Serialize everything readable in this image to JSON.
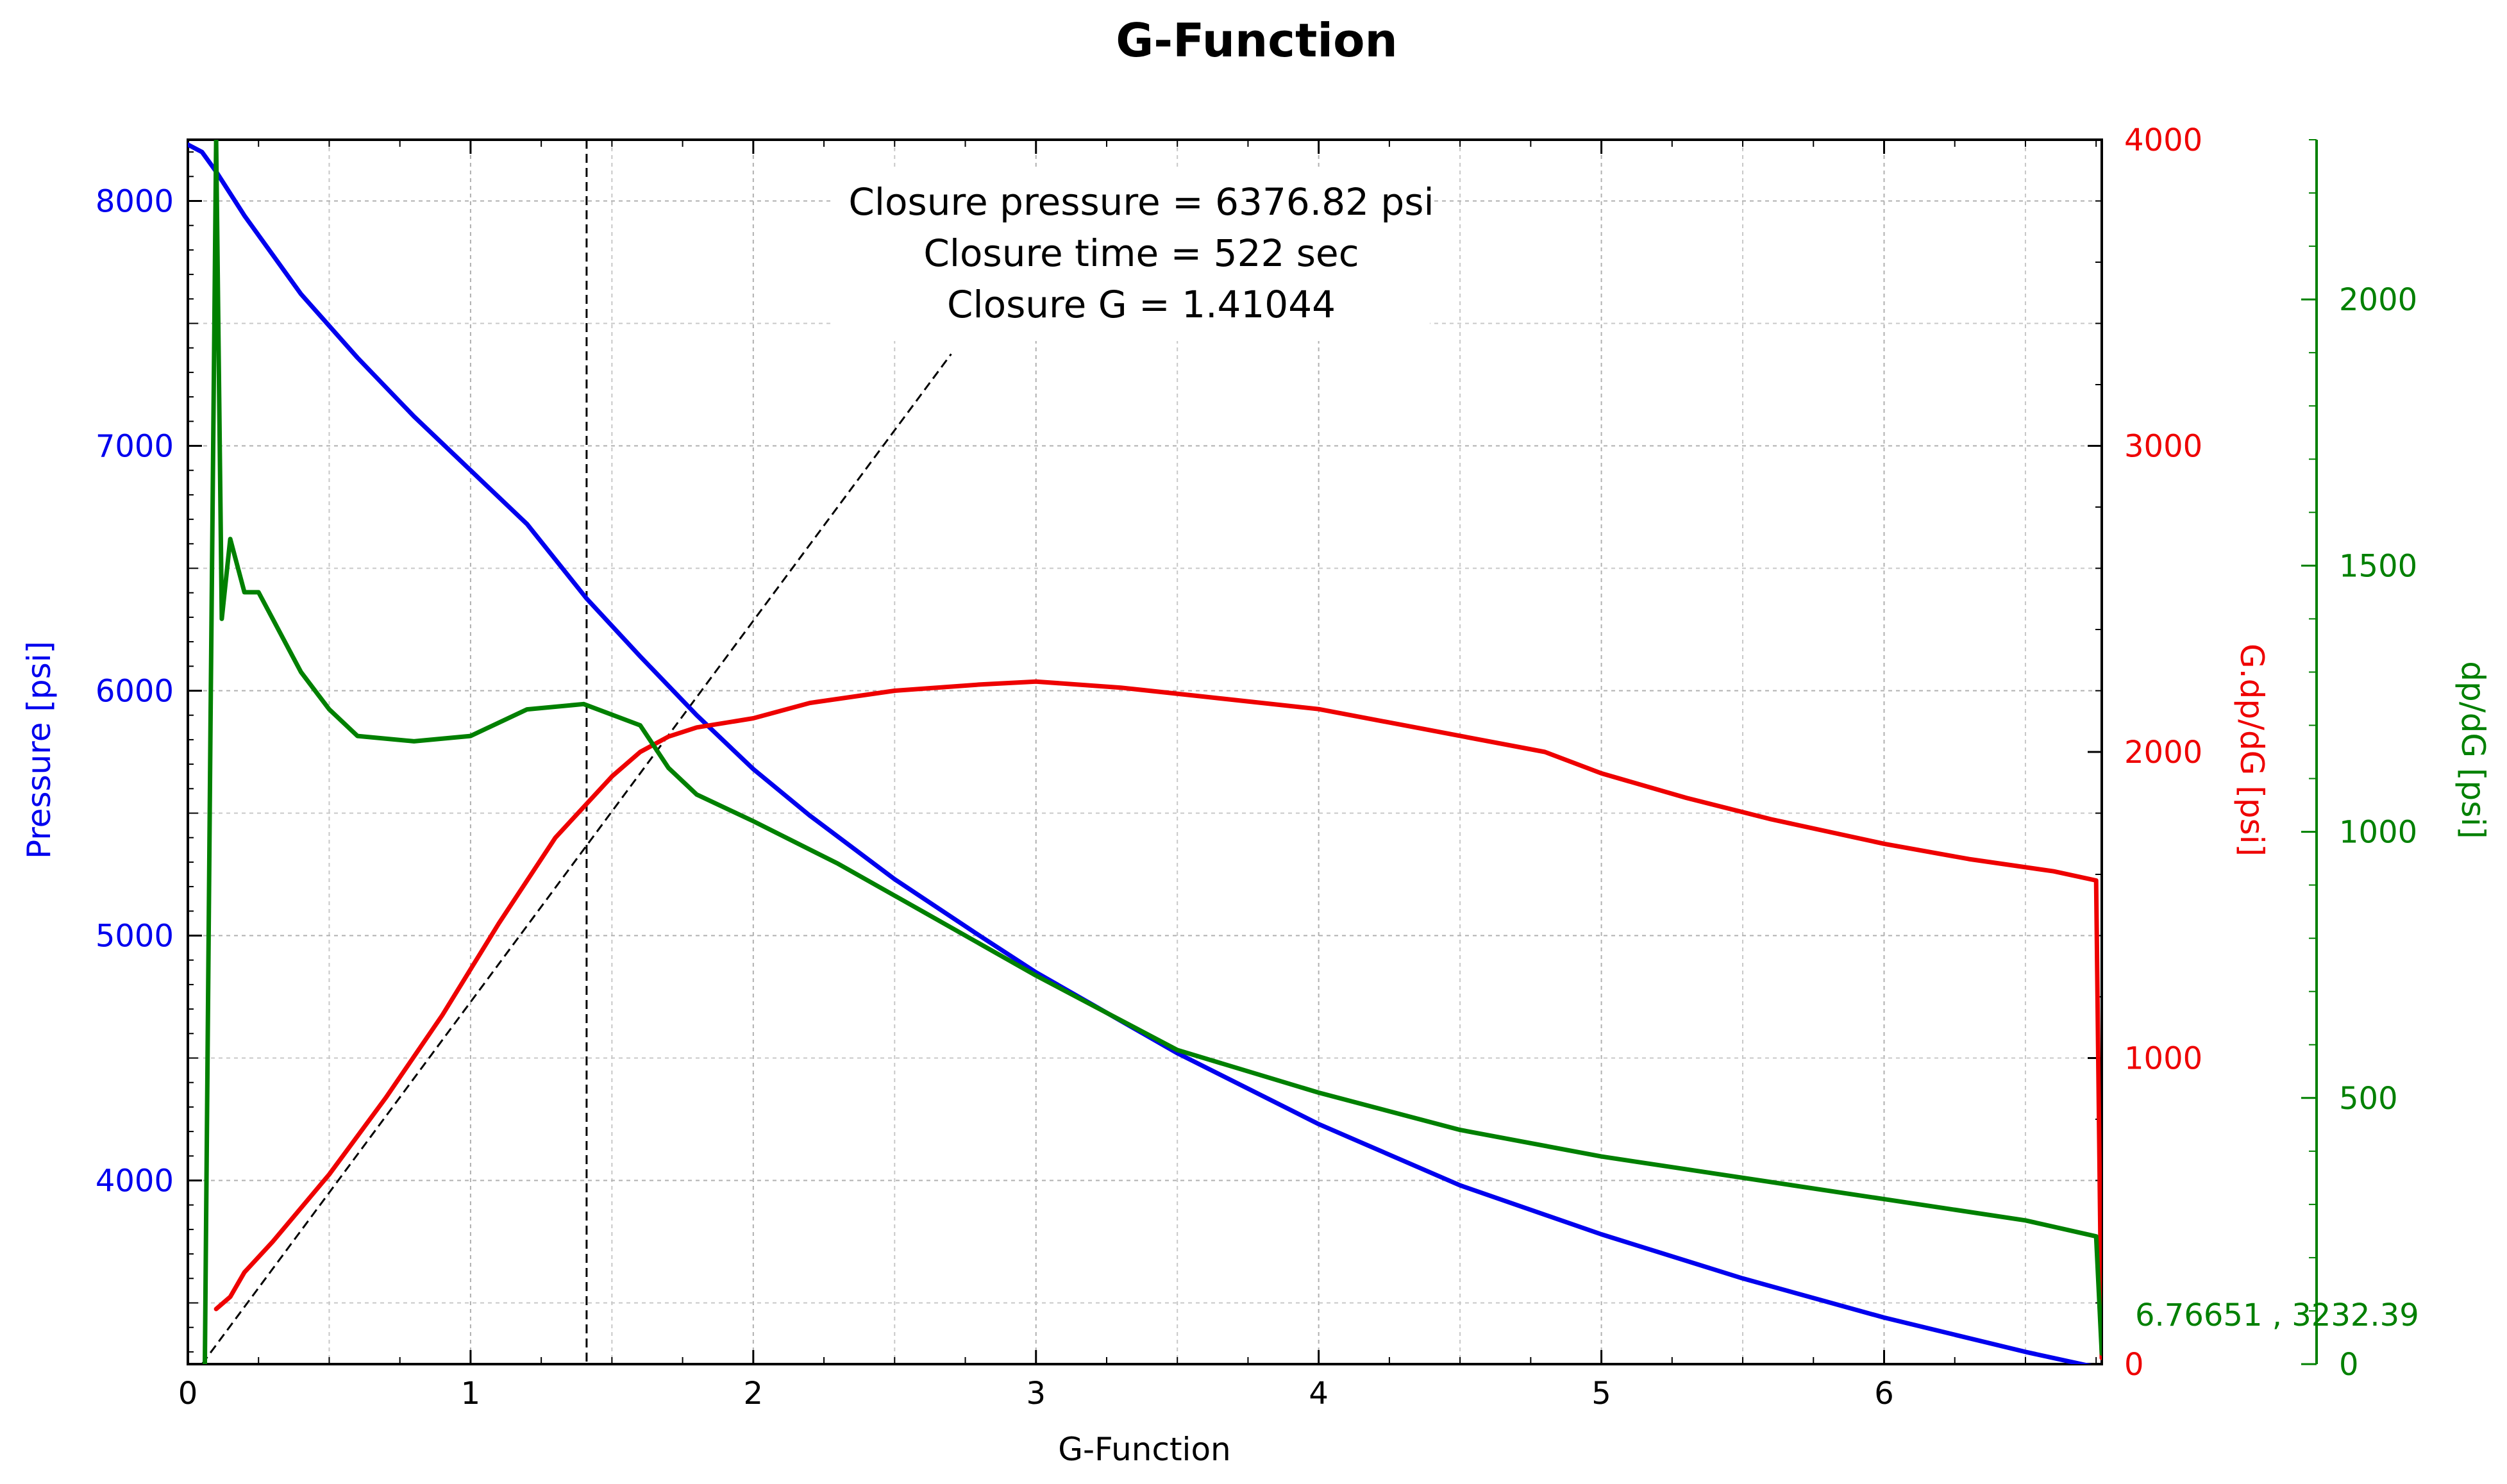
{
  "chart_data": {
    "type": "line",
    "title": "G-Function",
    "xlabel": "G-Function",
    "xlim": [
      0,
      6.77
    ],
    "xticks": [
      0,
      1,
      2,
      3,
      4,
      5,
      6
    ],
    "grid": true,
    "axes": {
      "pressure": {
        "label": "Pressure [psi]",
        "color": "#0000ee",
        "side": "left",
        "ylim": [
          3250,
          8250
        ],
        "ticks": [
          4000,
          5000,
          6000,
          7000,
          8000
        ]
      },
      "gdpdg": {
        "label": "G.dp/dG [psi]",
        "color": "#ee0000",
        "side": "right",
        "ylim": [
          0,
          4000
        ],
        "ticks": [
          0,
          1000,
          2000,
          3000,
          4000
        ]
      },
      "dpdg": {
        "label": "dp/dG [psi]",
        "color": "#008000",
        "side": "right-outer",
        "ylim": [
          0,
          2300
        ],
        "ticks": [
          0,
          500,
          1000,
          1500,
          2000
        ]
      }
    },
    "series": [
      {
        "name": "Pressure",
        "axis": "pressure",
        "color": "#0000ee",
        "x": [
          0,
          0.05,
          0.1,
          0.2,
          0.4,
          0.6,
          0.8,
          1.0,
          1.2,
          1.41,
          1.6,
          1.8,
          2.0,
          2.2,
          2.5,
          2.8,
          3.0,
          3.5,
          4.0,
          4.5,
          5.0,
          5.5,
          6.0,
          6.5,
          6.77
        ],
        "values": [
          8230,
          8200,
          8120,
          7940,
          7620,
          7360,
          7120,
          6900,
          6680,
          6377,
          6140,
          5900,
          5680,
          5490,
          5230,
          5000,
          4850,
          4520,
          4230,
          3980,
          3780,
          3600,
          3440,
          3300,
          3232
        ]
      },
      {
        "name": "G.dp/dG",
        "axis": "gdpdg",
        "color": "#ee0000",
        "x": [
          0.1,
          0.15,
          0.2,
          0.3,
          0.5,
          0.7,
          0.9,
          1.1,
          1.3,
          1.5,
          1.6,
          1.7,
          1.8,
          2.0,
          2.2,
          2.5,
          2.8,
          3.0,
          3.3,
          3.6,
          4.0,
          4.4,
          4.8,
          5.0,
          5.3,
          5.6,
          6.0,
          6.3,
          6.6,
          6.75,
          6.77
        ],
        "values": [
          180,
          220,
          300,
          400,
          620,
          870,
          1140,
          1440,
          1720,
          1920,
          2000,
          2050,
          2080,
          2110,
          2160,
          2200,
          2220,
          2230,
          2210,
          2180,
          2140,
          2070,
          2000,
          1930,
          1850,
          1780,
          1700,
          1650,
          1610,
          1580,
          20
        ]
      },
      {
        "name": "dp/dG",
        "axis": "dpdg",
        "color": "#008000",
        "x": [
          0.06,
          0.08,
          0.1,
          0.12,
          0.15,
          0.2,
          0.25,
          0.3,
          0.4,
          0.5,
          0.6,
          0.8,
          1.0,
          1.2,
          1.4,
          1.6,
          1.7,
          1.8,
          2.0,
          2.3,
          2.6,
          3.0,
          3.5,
          4.0,
          4.5,
          5.0,
          5.5,
          6.0,
          6.5,
          6.75,
          6.77
        ],
        "values": [
          0,
          1200,
          2300,
          1400,
          1550,
          1450,
          1450,
          1400,
          1300,
          1230,
          1180,
          1170,
          1180,
          1230,
          1240,
          1200,
          1120,
          1070,
          1020,
          940,
          850,
          730,
          590,
          510,
          440,
          390,
          350,
          310,
          270,
          240,
          20
        ]
      }
    ],
    "tangent_line": {
      "x": [
        0.05,
        2.7
      ],
      "values_gdpdg": [
        0,
        3300
      ]
    },
    "closure_line_x": 1.41044,
    "annotations": [
      "Closure pressure = 6376.82 psi",
      "Closure time = 522 sec",
      "Closure G = 1.41044"
    ],
    "cursor_readout": "6.76651 , 3232.39"
  }
}
